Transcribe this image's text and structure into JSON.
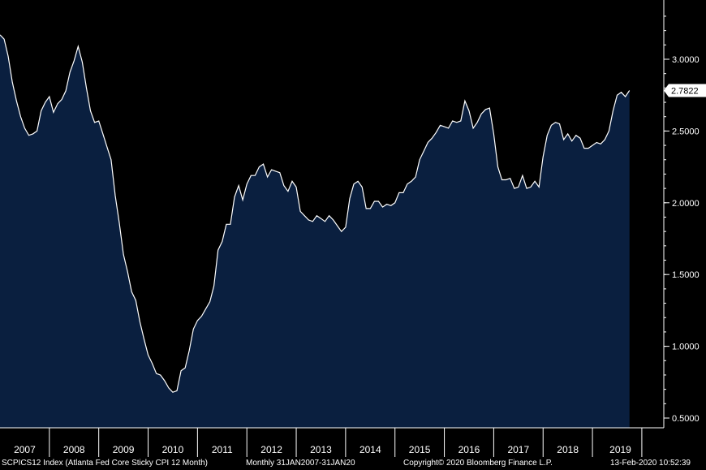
{
  "chart_data": {
    "type": "area",
    "x_start": "2007-01",
    "frequency": "monthly",
    "ylim": [
      0.4,
      3.4
    ],
    "y_ticks": [
      0.5,
      1.0,
      1.5,
      2.0,
      2.5,
      3.0
    ],
    "y_tick_labels": [
      "0.5000",
      "1.0000",
      "1.5000",
      "2.0000",
      "2.5000",
      "3.0000"
    ],
    "x_tick_labels": [
      "2007",
      "2008",
      "2009",
      "2010",
      "2011",
      "2012",
      "2013",
      "2014",
      "2015",
      "2016",
      "2017",
      "2018",
      "2019"
    ],
    "last_value_label": "2.7822",
    "colors": {
      "fill": "#0a1f3f",
      "line": "#ffffff",
      "background": "#000000",
      "badge": "#ffffff"
    },
    "values": [
      3.17,
      3.14,
      3.02,
      2.84,
      2.71,
      2.6,
      2.52,
      2.47,
      2.48,
      2.5,
      2.64,
      2.7,
      2.74,
      2.63,
      2.69,
      2.72,
      2.78,
      2.91,
      2.99,
      3.09,
      2.98,
      2.8,
      2.64,
      2.56,
      2.57,
      2.48,
      2.39,
      2.3,
      2.05,
      1.86,
      1.64,
      1.52,
      1.38,
      1.32,
      1.17,
      1.05,
      0.94,
      0.88,
      0.81,
      0.8,
      0.76,
      0.71,
      0.68,
      0.69,
      0.83,
      0.85,
      0.97,
      1.12,
      1.18,
      1.21,
      1.26,
      1.31,
      1.42,
      1.67,
      1.73,
      1.85,
      1.85,
      2.04,
      2.12,
      2.02,
      2.13,
      2.19,
      2.19,
      2.25,
      2.27,
      2.18,
      2.23,
      2.22,
      2.21,
      2.12,
      2.08,
      2.15,
      2.11,
      1.94,
      1.91,
      1.88,
      1.87,
      1.91,
      1.89,
      1.87,
      1.91,
      1.88,
      1.84,
      1.8,
      1.83,
      2.03,
      2.13,
      2.15,
      2.11,
      1.96,
      1.96,
      2.01,
      2.01,
      1.97,
      1.99,
      1.98,
      2.0,
      2.07,
      2.07,
      2.13,
      2.15,
      2.18,
      2.3,
      2.36,
      2.42,
      2.45,
      2.49,
      2.54,
      2.53,
      2.52,
      2.57,
      2.56,
      2.57,
      2.71,
      2.64,
      2.52,
      2.56,
      2.62,
      2.65,
      2.66,
      2.48,
      2.25,
      2.16,
      2.16,
      2.17,
      2.1,
      2.11,
      2.19,
      2.1,
      2.11,
      2.15,
      2.11,
      2.32,
      2.47,
      2.54,
      2.56,
      2.55,
      2.44,
      2.48,
      2.43,
      2.47,
      2.45,
      2.38,
      2.38,
      2.4,
      2.42,
      2.41,
      2.44,
      2.5,
      2.64,
      2.75,
      2.77,
      2.74,
      2.7822
    ]
  },
  "footer": {
    "series_label": "SCPICS12 Index (Atlanta Fed Core Sticky CPI 12 Month)",
    "period_label": "Monthly 31JAN2007-31JAN20",
    "copyright": "Copyright© 2020 Bloomberg Finance L.P.",
    "timestamp": "13-Feb-2020 10:52:39"
  }
}
